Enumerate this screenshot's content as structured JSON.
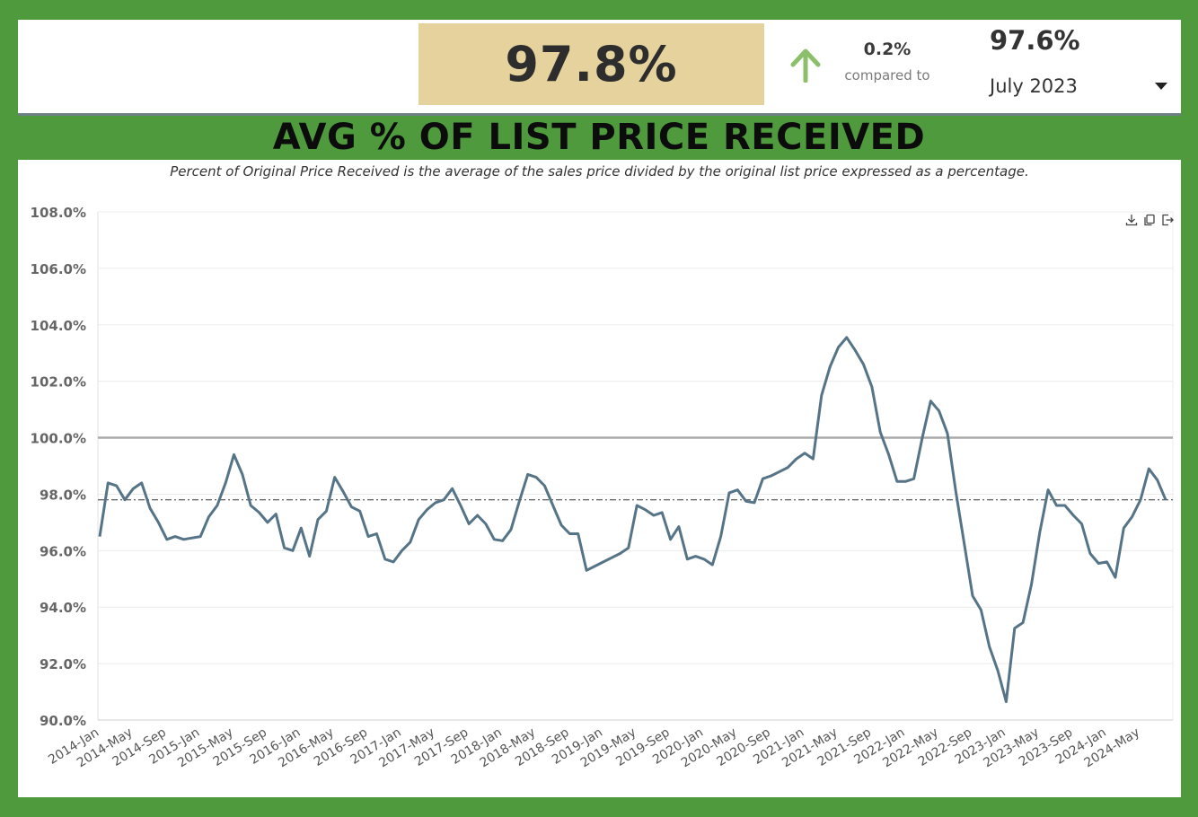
{
  "header": {
    "kpi_value": "97.8%",
    "change_value": "0.2%",
    "compared_label": "compared to",
    "prior_value": "97.6%",
    "period_select": "July 2023"
  },
  "main_title": "AVG % OF LIST PRICE RECEIVED",
  "subtitle": "Percent of Original Price Received is the average of the sales price divided by the original list price expressed as a percentage.",
  "colors": {
    "background": "#4f9a3c",
    "kpi_box": "#e6d29c",
    "arrow": "#8cbf6a",
    "series_line": "#557487",
    "reference_line": "#aaaaaa",
    "average_line": "#333333"
  },
  "icons": [
    "up-arrow-icon",
    "caret-down-icon",
    "download-icon",
    "copy-icon",
    "export-icon"
  ],
  "chart_data": {
    "type": "line",
    "start_month": "2014-Jan",
    "tick_labels": [
      "2014-Jan",
      "2014-May",
      "2014-Sep",
      "2015-Jan",
      "2015-May",
      "2015-Sep",
      "2016-Jan",
      "2016-May",
      "2016-Sep",
      "2017-Jan",
      "2017-May",
      "2017-Sep",
      "2018-Jan",
      "2018-May",
      "2018-Sep",
      "2019-Jan",
      "2019-May",
      "2019-Sep",
      "2020-Jan",
      "2020-May",
      "2020-Sep",
      "2021-Jan",
      "2021-May",
      "2021-Sep",
      "2022-Jan",
      "2022-May",
      "2022-Sep",
      "2023-Jan",
      "2023-May",
      "2023-Sep",
      "2024-Jan",
      "2024-May"
    ],
    "y_tick_labels": [
      "90.0%",
      "92.0%",
      "94.0%",
      "96.0%",
      "98.0%",
      "100.0%",
      "102.0%",
      "104.0%",
      "106.0%",
      "108.0%"
    ],
    "ylim": [
      90,
      108
    ],
    "y_ticks": [
      90,
      92,
      94,
      96,
      98,
      100,
      102,
      104,
      106,
      108
    ],
    "reference_line": 100.0,
    "average_line": 97.8,
    "grid": true,
    "series": [
      {
        "values": [
          96.5,
          98.4,
          98.3,
          97.8,
          98.2,
          98.4,
          97.5,
          97.0,
          96.4,
          96.5,
          96.4,
          96.45,
          96.5,
          97.2,
          97.6,
          98.4,
          99.4,
          98.7,
          97.6,
          97.35,
          97.0,
          97.3,
          96.1,
          96.0,
          96.8,
          95.8,
          97.1,
          97.4,
          98.6,
          98.1,
          97.55,
          97.4,
          96.5,
          96.6,
          95.7,
          95.6,
          96.0,
          96.3,
          97.1,
          97.45,
          97.7,
          97.8,
          98.2,
          97.6,
          96.95,
          97.25,
          96.95,
          96.4,
          96.35,
          96.75,
          97.75,
          98.7,
          98.6,
          98.3,
          97.6,
          96.9,
          96.6,
          96.6,
          95.3,
          95.45,
          95.6,
          95.75,
          95.9,
          96.1,
          97.6,
          97.45,
          97.25,
          97.35,
          96.4,
          96.85,
          95.7,
          95.8,
          95.7,
          95.5,
          96.5,
          98.05,
          98.15,
          97.75,
          97.7,
          98.55,
          98.65,
          98.8,
          98.95,
          99.25,
          99.45,
          99.25,
          101.5,
          102.5,
          103.2,
          103.55,
          103.1,
          102.6,
          101.8,
          100.2,
          99.4,
          98.45,
          98.45,
          98.55,
          100.0,
          101.3,
          100.95,
          100.15,
          98.1,
          96.25,
          94.4,
          93.9,
          92.6,
          91.75,
          90.65,
          93.25,
          93.45,
          94.8,
          96.65,
          98.15,
          97.6,
          97.6,
          97.25,
          96.95,
          95.9,
          95.55,
          95.6,
          95.05,
          96.8,
          97.2,
          97.8,
          98.9,
          98.5,
          97.8
        ]
      }
    ]
  }
}
